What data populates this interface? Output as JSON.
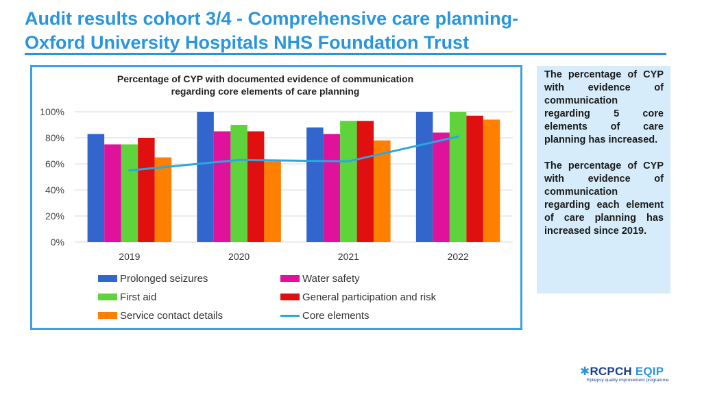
{
  "title": {
    "line1": "Audit results cohort 3/4 - Comprehensive care planning-",
    "line2": "Oxford University Hospitals NHS Foundation Trust"
  },
  "colors": {
    "accent": "#2a95dc",
    "prolonged_seizures": "#3366cc",
    "water_safety": "#e0119b",
    "first_aid": "#5ed33c",
    "general_participation": "#e01010",
    "service_contact": "#ff8000",
    "core_elements": "#29a8e0"
  },
  "chart_data": {
    "type": "bar",
    "title_line1": "Percentage of CYP with documented evidence of communication",
    "title_line2": "regarding core elements of care planning",
    "categories": [
      "2019",
      "2020",
      "2021",
      "2022"
    ],
    "ylim": [
      0,
      100
    ],
    "yticks": [
      0,
      20,
      40,
      60,
      80,
      100
    ],
    "ytick_labels": [
      "0%",
      "20%",
      "40%",
      "60%",
      "80%",
      "100%"
    ],
    "series": [
      {
        "name": "Prolonged seizures",
        "color": "#3366cc",
        "values": [
          83,
          100,
          88,
          100
        ]
      },
      {
        "name": "Water safety",
        "color": "#e0119b",
        "values": [
          75,
          85,
          83,
          84
        ]
      },
      {
        "name": "First aid",
        "color": "#5ed33c",
        "values": [
          75,
          90,
          93,
          100
        ]
      },
      {
        "name": "General participation and risk",
        "color": "#e01010",
        "values": [
          80,
          85,
          93,
          97
        ]
      },
      {
        "name": "Service contact details",
        "color": "#ff8000",
        "values": [
          65,
          62,
          78,
          94
        ]
      }
    ],
    "line_series": {
      "name": "Core elements",
      "color": "#29a8e0",
      "values": [
        55,
        63,
        62,
        81
      ]
    }
  },
  "side_panel": {
    "para1": "The percentage of CYP with evidence of communication regarding 5 core elements of care planning has increased.",
    "para2": "The percentage of CYP with evidence of communication regarding each element of care planning has increased since 2019."
  },
  "logo": {
    "rcpch": "RCPCH",
    "eqip": "EQIP",
    "tagline": "Epilepsy quality improvement programme"
  }
}
